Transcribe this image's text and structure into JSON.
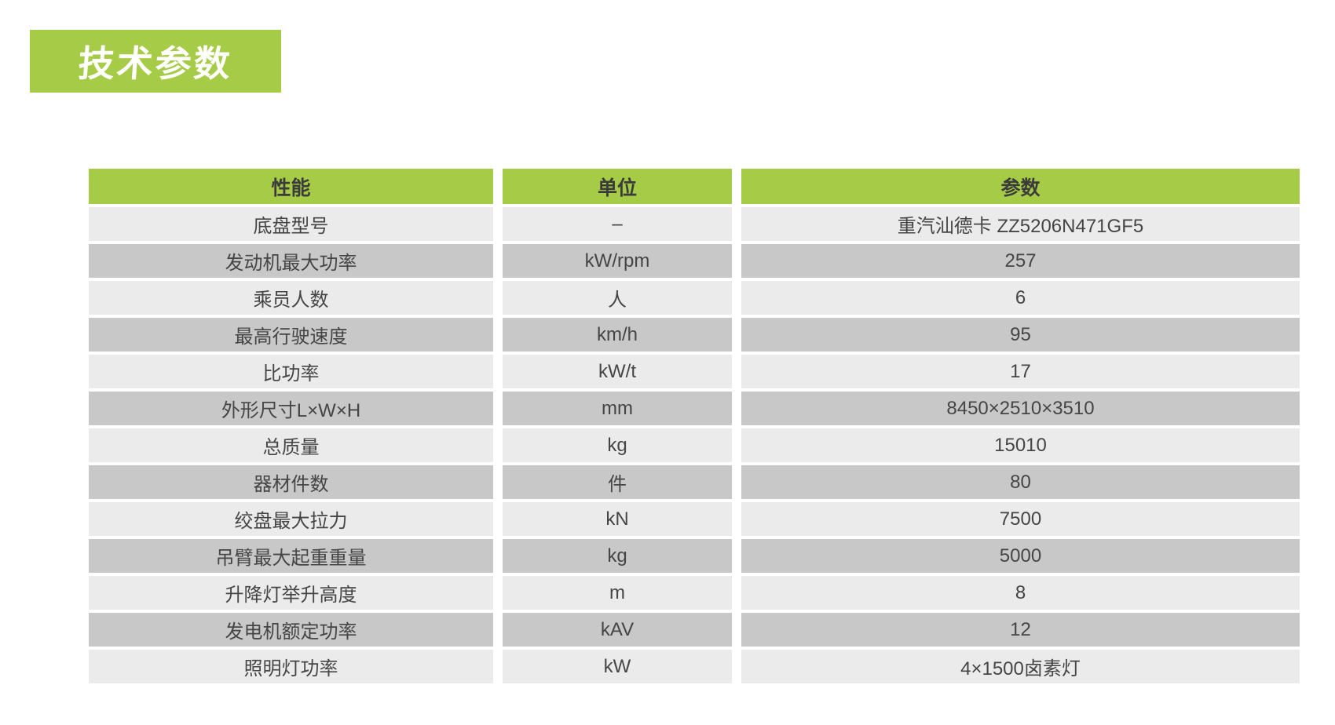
{
  "page_title": "技术参数",
  "colors": {
    "accent_green": "#a6cc47",
    "row_light": "#ebebeb",
    "row_dark": "#c8c8c8",
    "header_text": "#3b3b3b",
    "body_text": "#454545",
    "title_text": "#ffffff"
  },
  "table": {
    "columns": [
      "性能",
      "单位",
      "参数"
    ],
    "rows": [
      {
        "name": "底盘型号",
        "unit": "–",
        "value": "重汽汕德卡 ZZ5206N471GF5"
      },
      {
        "name": "发动机最大功率",
        "unit": "kW/rpm",
        "value": "257"
      },
      {
        "name": "乘员人数",
        "unit": "人",
        "value": "6"
      },
      {
        "name": "最高行驶速度",
        "unit": "km/h",
        "value": "95"
      },
      {
        "name": "比功率",
        "unit": "kW/t",
        "value": "17"
      },
      {
        "name": "外形尺寸L×W×H",
        "unit": "mm",
        "value": "8450×2510×3510"
      },
      {
        "name": "总质量",
        "unit": "kg",
        "value": "15010"
      },
      {
        "name": "器材件数",
        "unit": "件",
        "value": "80"
      },
      {
        "name": "绞盘最大拉力",
        "unit": "kN",
        "value": "7500"
      },
      {
        "name": "吊臂最大起重重量",
        "unit": "kg",
        "value": "5000"
      },
      {
        "name": "升降灯举升高度",
        "unit": "m",
        "value": "8"
      },
      {
        "name": "发电机额定功率",
        "unit": "kAV",
        "value": "12"
      },
      {
        "name": "照明灯功率",
        "unit": "kW",
        "value": "4×1500卤素灯"
      }
    ]
  }
}
